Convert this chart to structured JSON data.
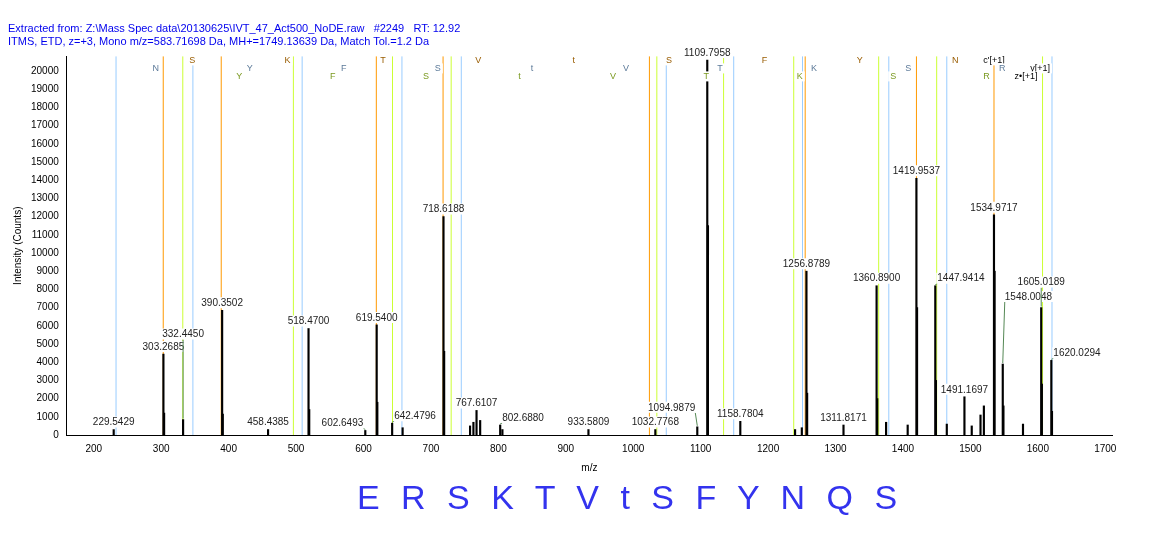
{
  "chart_data": {
    "type": "bar",
    "title": "Extracted from: Z:\\Mass Spec data\\20130625\\IVT_47_Act500_NoDE.raw   #2249   RT: 12.92",
    "subtitle": "ITMS, ETD, z=+3, Mono m/z=583.71698 Da, MH+=1749.13639 Da, Match Tol.=1.2 Da",
    "xlabel": "m/z",
    "ylabel": "Intensity (Counts)",
    "x": [
      229.5429,
      303.2685,
      304.3,
      332.445,
      390.3502,
      391.3,
      458.4385,
      518.47,
      519.5,
      602.6493,
      619.54,
      620.5,
      642.4796,
      658,
      718.6188,
      719.6,
      758,
      763,
      767.6107,
      773,
      802.688,
      806,
      933.5809,
      1032.7768,
      1094.9879,
      1109.7958,
      1110.8,
      1158.7804,
      1240,
      1250,
      1256.8789,
      1257.9,
      1311.8171,
      1360.89,
      1361.9,
      1375,
      1407,
      1419.9537,
      1420.9,
      1447.9414,
      1448.9,
      1465,
      1491.1697,
      1502,
      1515,
      1520,
      1534.9717,
      1535.9,
      1548.0048,
      1549,
      1578,
      1605.0189,
      1606,
      1620.0294,
      1621
    ],
    "values": [
      300,
      4450,
      1200,
      850,
      6850,
      1150,
      300,
      5850,
      1400,
      250,
      6050,
      1800,
      650,
      400,
      12000,
      4600,
      500,
      700,
      1350,
      800,
      550,
      300,
      300,
      300,
      450,
      20600,
      11500,
      750,
      300,
      400,
      9000,
      2300,
      550,
      8200,
      2000,
      700,
      550,
      14100,
      7000,
      8200,
      3000,
      600,
      2100,
      500,
      1100,
      1600,
      12100,
      9000,
      3900,
      1600,
      600,
      7000,
      2800,
      4100,
      1300
    ],
    "color": "#000000",
    "xlim": [
      160,
      1710
    ],
    "xticks": [
      200,
      300,
      400,
      500,
      600,
      700,
      800,
      900,
      1000,
      1100,
      1200,
      1300,
      1400,
      1500,
      1600,
      1700
    ],
    "ylim": [
      0,
      20800
    ],
    "yticks": [
      0,
      1000,
      2000,
      3000,
      4000,
      5000,
      6000,
      7000,
      8000,
      9000,
      10000,
      11000,
      12000,
      13000,
      14000,
      15000,
      16000,
      17000,
      18000,
      19000,
      20000
    ],
    "grid": false,
    "legend": false,
    "ref_lines": [
      {
        "axis": "x",
        "value": 303,
        "color": "#ff9900"
      },
      {
        "axis": "x",
        "value": 389,
        "color": "#ff9900"
      },
      {
        "axis": "x",
        "value": 619,
        "color": "#ff9900"
      },
      {
        "axis": "x",
        "value": 718,
        "color": "#ff9900"
      },
      {
        "axis": "x",
        "value": 1024,
        "color": "#ff9900"
      },
      {
        "axis": "x",
        "value": 1255,
        "color": "#ff9900"
      },
      {
        "axis": "x",
        "value": 1420,
        "color": "#ff9900"
      },
      {
        "axis": "x",
        "value": 1535,
        "color": "#ff9900"
      },
      {
        "axis": "x",
        "value": 233,
        "color": "#99ccff"
      },
      {
        "axis": "x",
        "value": 347,
        "color": "#99ccff"
      },
      {
        "axis": "x",
        "value": 509,
        "color": "#99ccff"
      },
      {
        "axis": "x",
        "value": 657,
        "color": "#99ccff"
      },
      {
        "axis": "x",
        "value": 745,
        "color": "#99ccff"
      },
      {
        "axis": "x",
        "value": 1049,
        "color": "#99ccff"
      },
      {
        "axis": "x",
        "value": 1149,
        "color": "#99ccff"
      },
      {
        "axis": "x",
        "value": 1251,
        "color": "#99ccff"
      },
      {
        "axis": "x",
        "value": 1379,
        "color": "#99ccff"
      },
      {
        "axis": "x",
        "value": 1465,
        "color": "#99ccff"
      },
      {
        "axis": "x",
        "value": 1621,
        "color": "#99ccff"
      },
      {
        "axis": "x",
        "value": 332,
        "color": "#ccff33"
      },
      {
        "axis": "x",
        "value": 496,
        "color": "#ccff33"
      },
      {
        "axis": "x",
        "value": 643,
        "color": "#ccff33"
      },
      {
        "axis": "x",
        "value": 730,
        "color": "#ccff33"
      },
      {
        "axis": "x",
        "value": 1035,
        "color": "#ccff33"
      },
      {
        "axis": "x",
        "value": 1134,
        "color": "#ccff33"
      },
      {
        "axis": "x",
        "value": 1238,
        "color": "#ccff33"
      },
      {
        "axis": "x",
        "value": 1364,
        "color": "#ccff33"
      },
      {
        "axis": "x",
        "value": 1450,
        "color": "#ccff33"
      },
      {
        "axis": "x",
        "value": 1607,
        "color": "#ccff33"
      }
    ],
    "annotations": [
      {
        "text": "229.5429",
        "x": 229.5429,
        "y": 300
      },
      {
        "text": "303.2685",
        "x": 303.2685,
        "y": 4450
      },
      {
        "text": "332.4450",
        "x": 332.445,
        "y": 850
      },
      {
        "text": "390.3502",
        "x": 390.3502,
        "y": 6850
      },
      {
        "text": "458.4385",
        "x": 458.4385,
        "y": 300
      },
      {
        "text": "518.4700",
        "x": 518.47,
        "y": 5850
      },
      {
        "text": "602.6493",
        "x": 602.6493,
        "y": 250
      },
      {
        "text": "619.5400",
        "x": 619.54,
        "y": 6050
      },
      {
        "text": "642.4796",
        "x": 642.4796,
        "y": 650
      },
      {
        "text": "718.6188",
        "x": 718.6188,
        "y": 12000
      },
      {
        "text": "767.6107",
        "x": 767.6107,
        "y": 1350
      },
      {
        "text": "802.6880",
        "x": 802.688,
        "y": 550
      },
      {
        "text": "933.5809",
        "x": 933.5809,
        "y": 300
      },
      {
        "text": "1032.7768",
        "x": 1032.7768,
        "y": 300
      },
      {
        "text": "1094.9879",
        "x": 1094.9879,
        "y": 450
      },
      {
        "text": "1109.7958",
        "x": 1109.7958,
        "y": 20600
      },
      {
        "text": "1158.7804",
        "x": 1158.7804,
        "y": 750
      },
      {
        "text": "1256.8789",
        "x": 1256.8789,
        "y": 9000
      },
      {
        "text": "1311.8171",
        "x": 1311.8171,
        "y": 550
      },
      {
        "text": "1360.8900",
        "x": 1360.89,
        "y": 8200
      },
      {
        "text": "1419.9537",
        "x": 1419.9537,
        "y": 14100
      },
      {
        "text": "1447.9414",
        "x": 1447.9414,
        "y": 8200
      },
      {
        "text": "1491.1697",
        "x": 1491.1697,
        "y": 2100
      },
      {
        "text": "1534.9717",
        "x": 1534.9717,
        "y": 12100
      },
      {
        "text": "1548.0048",
        "x": 1548.0048,
        "y": 3900
      },
      {
        "text": "1605.0189",
        "x": 1605.0189,
        "y": 7000
      },
      {
        "text": "1620.0294",
        "x": 1620.0294,
        "y": 4100
      },
      "S K T V t S F Y N",
      "c'[+1]",
      "N Y F S t V T K S R",
      "y[+1]",
      "Y F S t V T K S R",
      "z•[+1]",
      "E R S K T V t S F Y N Q S"
    ]
  }
}
